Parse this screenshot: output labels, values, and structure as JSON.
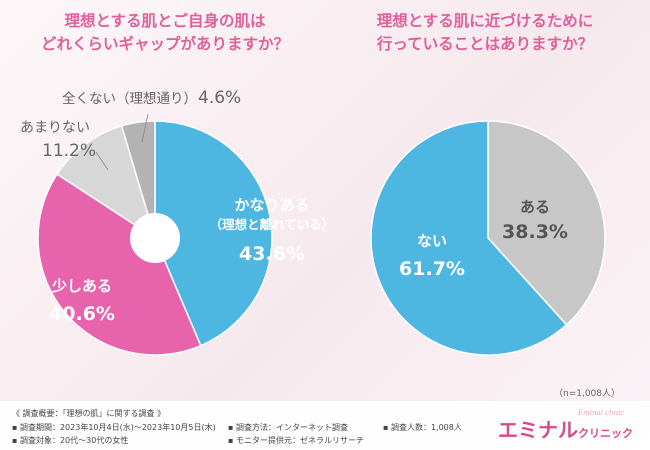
{
  "questions": {
    "q1_line1": "理想とする肌とご自身の肌は",
    "q1_line2": "どれくらいギャップがありますか？",
    "q2_line1": "理想とする肌に近づけるために",
    "q2_line2": "行っていることはありますか？"
  },
  "sample_note": "（n=1,008人）",
  "chart_data": [
    {
      "type": "pie",
      "variant": "donut",
      "title": "理想とする肌とご自身の肌はどれくらいギャップがありますか？",
      "slices": [
        {
          "label": "かなりある",
          "sublabel": "（理想と離れている）",
          "value": 43.6,
          "display": "43.6%",
          "color": "#4db6e1"
        },
        {
          "label": "少しある",
          "value": 40.6,
          "display": "40.6%",
          "color": "#e764ad"
        },
        {
          "label": "あまりない",
          "value": 11.2,
          "display": "11.2%",
          "color": "#d7d7d7"
        },
        {
          "label": "全くない（理想通り）",
          "value": 4.6,
          "display": "4.6%",
          "color": "#b3b3b3"
        }
      ]
    },
    {
      "type": "pie",
      "title": "理想とする肌に近づけるために行っていることはありますか？",
      "slices": [
        {
          "label": "ある",
          "value": 38.3,
          "display": "38.3%",
          "color": "#c7c7c7"
        },
        {
          "label": "ない",
          "value": 61.7,
          "display": "61.7%",
          "color": "#4db6e1"
        }
      ]
    }
  ],
  "footer": {
    "overview": "《 調査概要：「理想の肌」に関する調査 》",
    "period": "▪ 調査期間：2023年10月4日(水)～2023年10月5日(木)",
    "target": "▪ 調査対象：20代～30代の女性",
    "method": "▪ 調査方法：インターネット調査",
    "provider": "▪ モニター提供元：ゼネラルリサーチ",
    "count": "▪ 調査人数：1,008人"
  },
  "logo": {
    "main": "エミナル",
    "sub": "クリニック",
    "tagline": "Eminal clinic"
  }
}
